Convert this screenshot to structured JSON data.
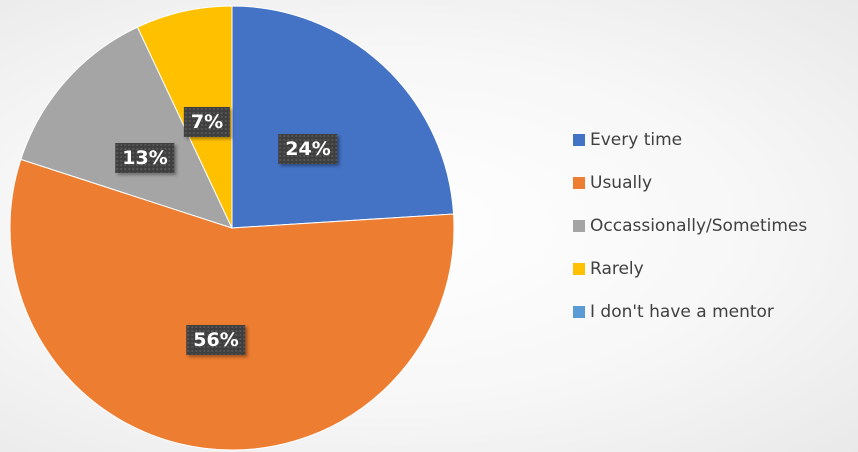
{
  "chart_data": {
    "type": "pie",
    "title": "",
    "start_angle_deg": 0,
    "direction": "clockwise",
    "legend_position": "right",
    "slices": [
      {
        "label": "Every time",
        "value": 24,
        "display": "24%",
        "color": "#4472C4"
      },
      {
        "label": "Usually",
        "value": 56,
        "display": "56%",
        "color": "#ED7D31"
      },
      {
        "label": "Occassionally/Sometimes",
        "value": 13,
        "display": "13%",
        "color": "#A5A5A5"
      },
      {
        "label": "Rarely",
        "value": 7,
        "display": "7%",
        "color": "#FFC000"
      },
      {
        "label": "I don't have a mentor",
        "value": 0,
        "display": "",
        "color": "#5B9BD5"
      }
    ]
  }
}
